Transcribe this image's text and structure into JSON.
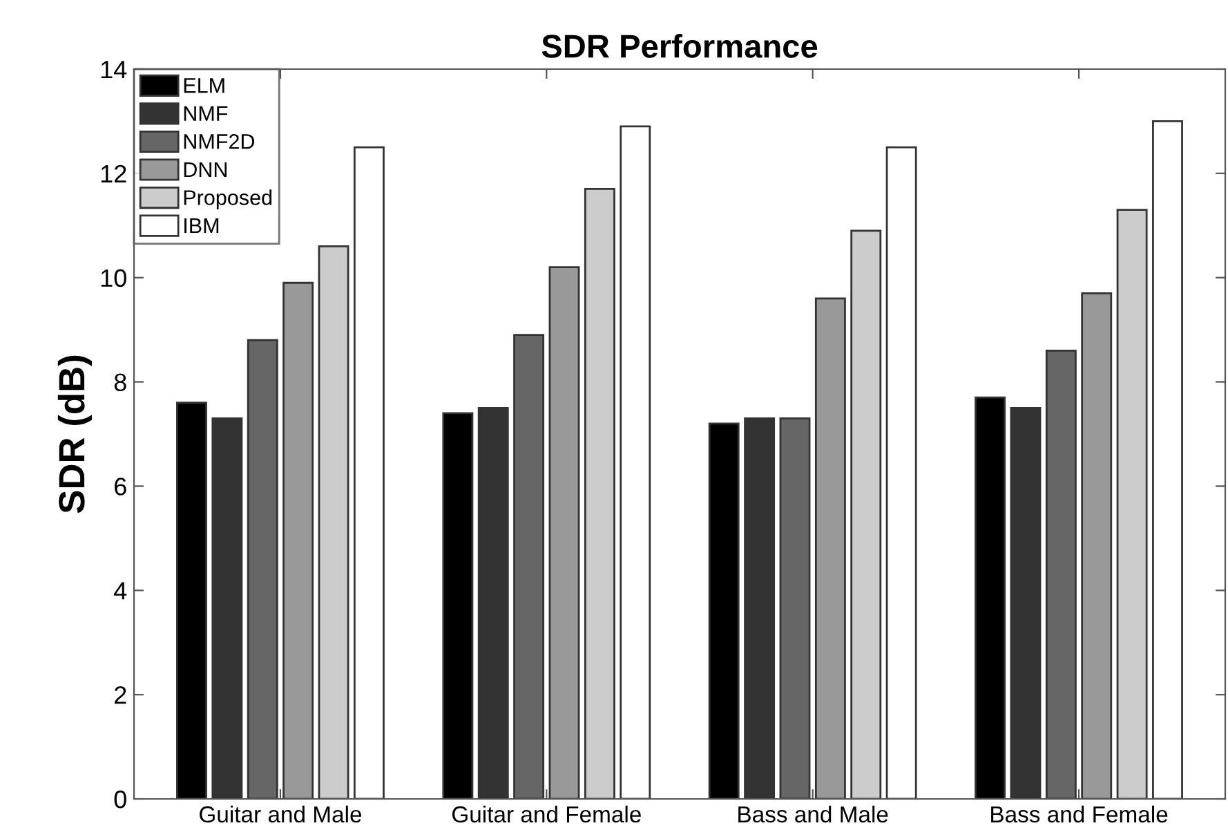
{
  "chart_data": {
    "type": "bar",
    "title": "SDR Performance",
    "ylabel": "SDR (dB)",
    "categories": [
      "Guitar and Male",
      "Guitar and Female",
      "Bass and Male",
      "Bass and Female"
    ],
    "series": [
      {
        "name": "ELM",
        "color": "#000000",
        "values": [
          7.6,
          7.4,
          7.2,
          7.7
        ]
      },
      {
        "name": "NMF",
        "color": "#333333",
        "values": [
          7.3,
          7.5,
          7.3,
          7.5
        ]
      },
      {
        "name": "NMF2D",
        "color": "#666666",
        "values": [
          8.8,
          8.9,
          7.3,
          8.6
        ]
      },
      {
        "name": "DNN",
        "color": "#999999",
        "values": [
          9.9,
          10.2,
          9.6,
          9.7
        ]
      },
      {
        "name": "Proposed",
        "color": "#cccccc",
        "values": [
          10.6,
          11.7,
          10.9,
          11.3
        ]
      },
      {
        "name": "IBM",
        "color": "#ffffff",
        "values": [
          12.5,
          12.9,
          12.5,
          13.0
        ]
      }
    ],
    "ylim": [
      0,
      14
    ],
    "yticks": [
      0,
      2,
      4,
      6,
      8,
      10,
      12,
      14
    ],
    "grid": false,
    "legend": "top left"
  }
}
